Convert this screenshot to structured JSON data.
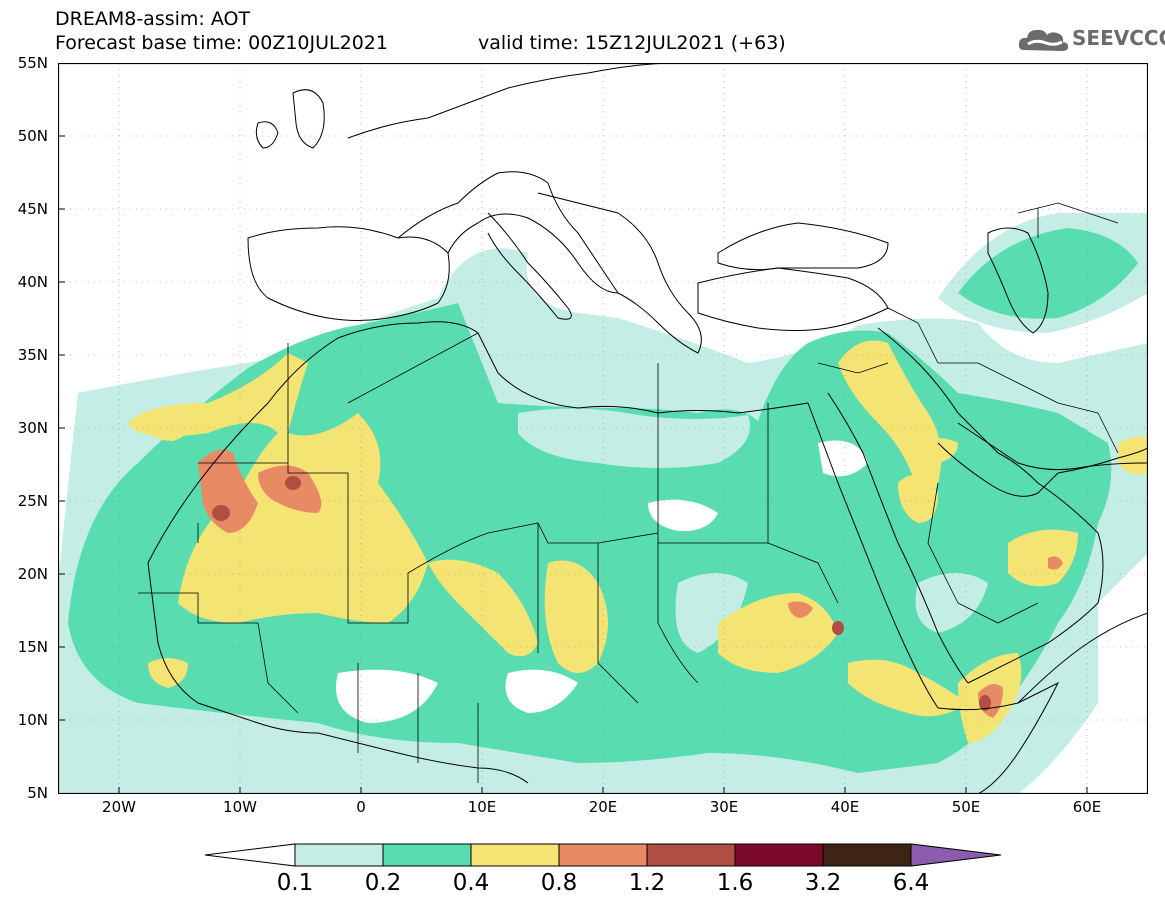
{
  "header": {
    "title_line": "DREAM8-assim: AOT",
    "base_time": "Forecast base time: 00Z10JUL2021",
    "valid_time": "valid time: 15Z12JUL2021 (+63)"
  },
  "logo": {
    "text": "SEEVCCC",
    "icon": "cloud-icon"
  },
  "map": {
    "lat_range": [
      5,
      55
    ],
    "lon_range": [
      -25,
      65
    ],
    "grid": true,
    "lat_labels": [
      "55N",
      "50N",
      "45N",
      "40N",
      "35N",
      "30N",
      "25N",
      "20N",
      "15N",
      "10N",
      "5N"
    ],
    "lon_labels": [
      "20W",
      "10W",
      "0",
      "10E",
      "20E",
      "30E",
      "40E",
      "50E",
      "60E"
    ]
  },
  "colorbar": {
    "labels": [
      "0.1",
      "0.2",
      "0.4",
      "0.8",
      "1.2",
      "1.6",
      "3.2",
      "6.4"
    ],
    "colors": [
      "#ffffff",
      "#c4eee5",
      "#58dcb0",
      "#f4e474",
      "#e88a64",
      "#b04e42",
      "#7c0a2a",
      "#3e2414",
      "#8c5cac"
    ]
  },
  "palette": {
    "c1": "#c4eee5",
    "c2": "#58dcb0",
    "c3": "#f4e474",
    "c4": "#e88a64",
    "c5": "#b04e42"
  }
}
